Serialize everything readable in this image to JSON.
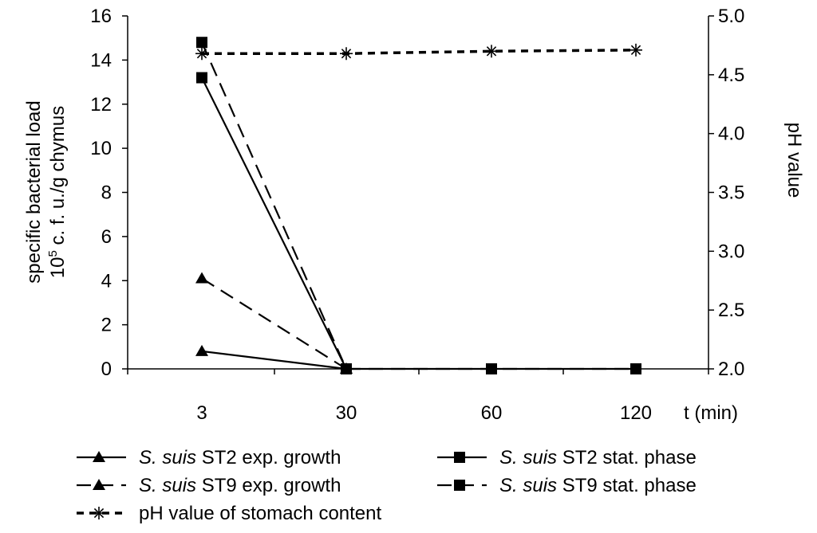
{
  "chart_data": {
    "type": "line",
    "categories": [
      "3",
      "30",
      "60",
      "120"
    ],
    "xlabel": "t (min)",
    "ylabel_left_line1": "specific bacterial load",
    "ylabel_left_line2_prefix": "10",
    "ylabel_left_line2_sup": "5",
    "ylabel_left_line2_suffix": " c. f. u./g chymus",
    "ylabel_right": "pH value",
    "ylim_left": [
      0,
      16
    ],
    "ylim_right": [
      2.0,
      5.0
    ],
    "yticks_left": [
      "0",
      "2",
      "4",
      "6",
      "8",
      "10",
      "12",
      "14",
      "16"
    ],
    "yticks_right": [
      "2.0",
      "2.5",
      "3.0",
      "3.5",
      "4.0",
      "4.5",
      "5.0"
    ],
    "grid": false,
    "legend_position": "bottom",
    "series": [
      {
        "name_italic": "S. suis",
        "name_rest": " ST2 exp. growth",
        "axis": "left",
        "marker": "triangle",
        "dash": "solid",
        "values": [
          0.8,
          0,
          null,
          null
        ]
      },
      {
        "name_italic": "S. suis",
        "name_rest": " ST2 stat. phase",
        "axis": "left",
        "marker": "square",
        "dash": "solid",
        "values": [
          13.2,
          0,
          0,
          0
        ]
      },
      {
        "name_italic": "S. suis",
        "name_rest": " ST9 exp. growth",
        "axis": "left",
        "marker": "triangle",
        "dash": "longdash",
        "values": [
          4.1,
          0,
          null,
          null
        ]
      },
      {
        "name_italic": "S. suis",
        "name_rest": " ST9 stat. phase",
        "axis": "left",
        "marker": "square",
        "dash": "longdash",
        "values": [
          14.8,
          0,
          0,
          0
        ]
      },
      {
        "name_italic": "",
        "name_rest": "pH value of stomach content",
        "axis": "right",
        "marker": "asterisk",
        "dash": "shortdash",
        "values": [
          4.68,
          4.68,
          4.7,
          4.71
        ]
      }
    ]
  }
}
